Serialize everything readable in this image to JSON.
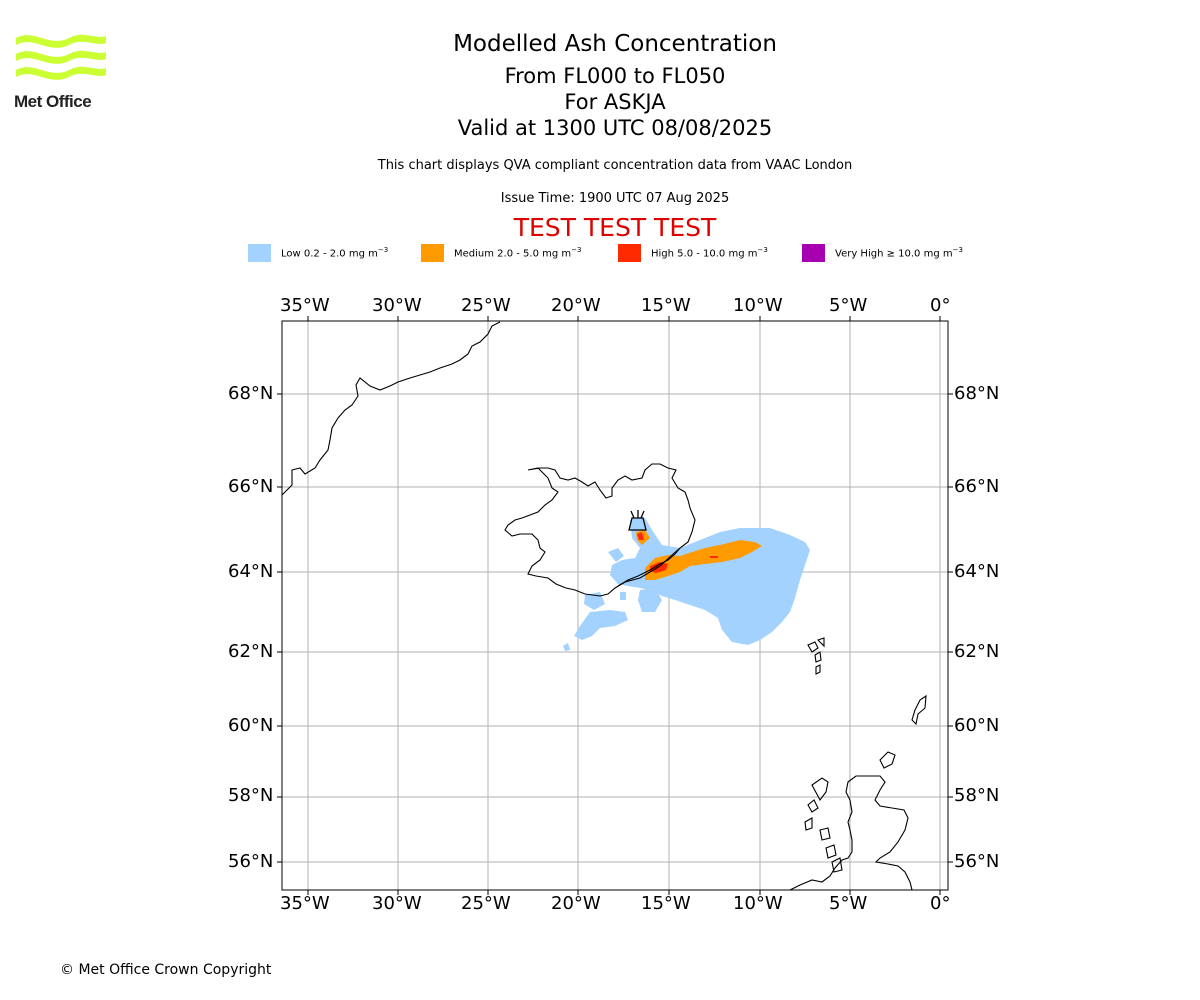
{
  "header": {
    "logo_text": "Met Office",
    "title": "Modelled Ash Concentration",
    "levels": "From FL000 to FL050",
    "volcano": "For ASKJA",
    "valid": "Valid at 1300 UTC 08/08/2025",
    "subtitle": "This chart displays QVA compliant concentration data from VAAC London",
    "issue_time": "Issue Time: 1900 UTC 07 Aug 2025",
    "test_banner": "TEST TEST TEST"
  },
  "legend": [
    {
      "label": "Low 0.2 - 2.0 mg m",
      "exp": "−3",
      "color": "#a3d2ff"
    },
    {
      "label": "Medium 2.0 - 5.0 mg m",
      "exp": "−3",
      "color": "#ff9a00"
    },
    {
      "label": "High 5.0 - 10.0 mg m",
      "exp": "−3",
      "color": "#ff2a00"
    },
    {
      "label": "Very High  ≥  10.0 mg m",
      "exp": "−3",
      "color": "#a600b0"
    }
  ],
  "map": {
    "lon_labels": [
      "35°W",
      "30°W",
      "25°W",
      "20°W",
      "15°W",
      "10°W",
      "5°W",
      "0°"
    ],
    "lat_labels": [
      "68°N",
      "66°N",
      "64°N",
      "62°N",
      "60°N",
      "58°N",
      "56°N"
    ],
    "volcano_icon": "volcano-icon"
  },
  "footer": {
    "copyright": "© Met Office Crown Copyright"
  }
}
